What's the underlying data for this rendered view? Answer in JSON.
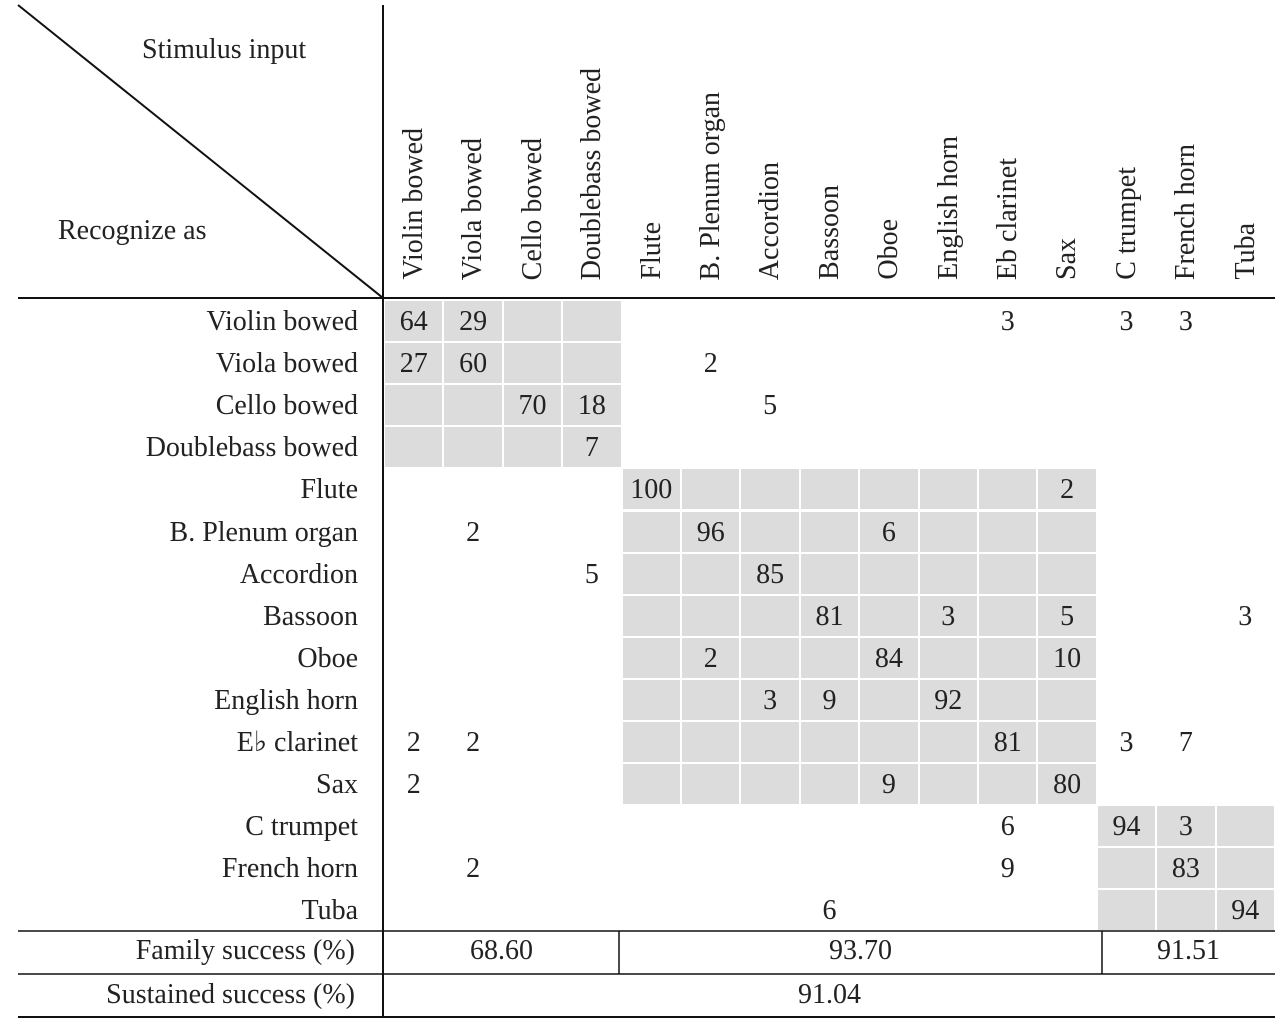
{
  "header": {
    "stimulus": "Stimulus input",
    "recognize": "Recognize as"
  },
  "columns": [
    "Violin bowed",
    "Viola bowed",
    "Cello bowed",
    "Doublebass bowed",
    "Flute",
    "B. Plenum organ",
    "Accordion",
    "Bassoon",
    "Oboe",
    "English horn",
    "Eb clarinet",
    "Sax",
    "C trumpet",
    "French horn",
    "Tuba"
  ],
  "rows": [
    {
      "label": "Violin bowed",
      "cells": [
        64,
        29,
        null,
        null,
        null,
        null,
        null,
        null,
        null,
        null,
        3,
        null,
        3,
        3,
        null
      ]
    },
    {
      "label": "Viola bowed",
      "cells": [
        27,
        60,
        null,
        null,
        null,
        2,
        null,
        null,
        null,
        null,
        null,
        null,
        null,
        null,
        null
      ]
    },
    {
      "label": "Cello bowed",
      "cells": [
        null,
        null,
        70,
        18,
        null,
        null,
        5,
        null,
        null,
        null,
        null,
        null,
        null,
        null,
        null
      ]
    },
    {
      "label": "Doublebass bowed",
      "cells": [
        null,
        null,
        null,
        7,
        null,
        null,
        null,
        null,
        null,
        null,
        null,
        null,
        null,
        null,
        null
      ]
    },
    {
      "label": "Flute",
      "cells": [
        null,
        null,
        null,
        null,
        100,
        null,
        null,
        null,
        null,
        null,
        null,
        2,
        null,
        null,
        null
      ]
    },
    {
      "label": "B. Plenum organ",
      "cells": [
        null,
        2,
        null,
        null,
        null,
        96,
        null,
        null,
        6,
        null,
        null,
        null,
        null,
        null,
        null
      ]
    },
    {
      "label": "Accordion",
      "cells": [
        null,
        null,
        null,
        5,
        null,
        null,
        85,
        null,
        null,
        null,
        null,
        null,
        null,
        null,
        null
      ]
    },
    {
      "label": "Bassoon",
      "cells": [
        null,
        null,
        null,
        null,
        null,
        null,
        null,
        81,
        null,
        3,
        null,
        5,
        null,
        null,
        3
      ]
    },
    {
      "label": "Oboe",
      "cells": [
        null,
        null,
        null,
        null,
        null,
        2,
        null,
        null,
        84,
        null,
        null,
        10,
        null,
        null,
        null
      ]
    },
    {
      "label": "English horn",
      "cells": [
        null,
        null,
        null,
        null,
        null,
        null,
        3,
        9,
        null,
        92,
        null,
        null,
        null,
        null,
        null
      ]
    },
    {
      "label": "E♭ clarinet",
      "cells": [
        2,
        2,
        null,
        null,
        null,
        null,
        null,
        null,
        null,
        null,
        81,
        null,
        3,
        7,
        null
      ]
    },
    {
      "label": "Sax",
      "cells": [
        2,
        null,
        null,
        null,
        null,
        null,
        null,
        null,
        9,
        null,
        null,
        80,
        null,
        null,
        null
      ]
    },
    {
      "label": "C trumpet",
      "cells": [
        null,
        null,
        null,
        null,
        null,
        null,
        null,
        null,
        null,
        null,
        6,
        null,
        94,
        3,
        null
      ]
    },
    {
      "label": "French horn",
      "cells": [
        null,
        2,
        null,
        null,
        null,
        null,
        null,
        null,
        null,
        null,
        9,
        null,
        null,
        83,
        null
      ]
    },
    {
      "label": "Tuba",
      "cells": [
        null,
        null,
        null,
        null,
        null,
        null,
        null,
        6,
        null,
        null,
        null,
        null,
        null,
        null,
        94
      ]
    }
  ],
  "family_success": {
    "label": "Family success (%)",
    "values": [
      "68.60",
      "93.70",
      "91.51"
    ]
  },
  "sustained_success": {
    "label": "Sustained success (%)",
    "value": "91.04"
  }
}
